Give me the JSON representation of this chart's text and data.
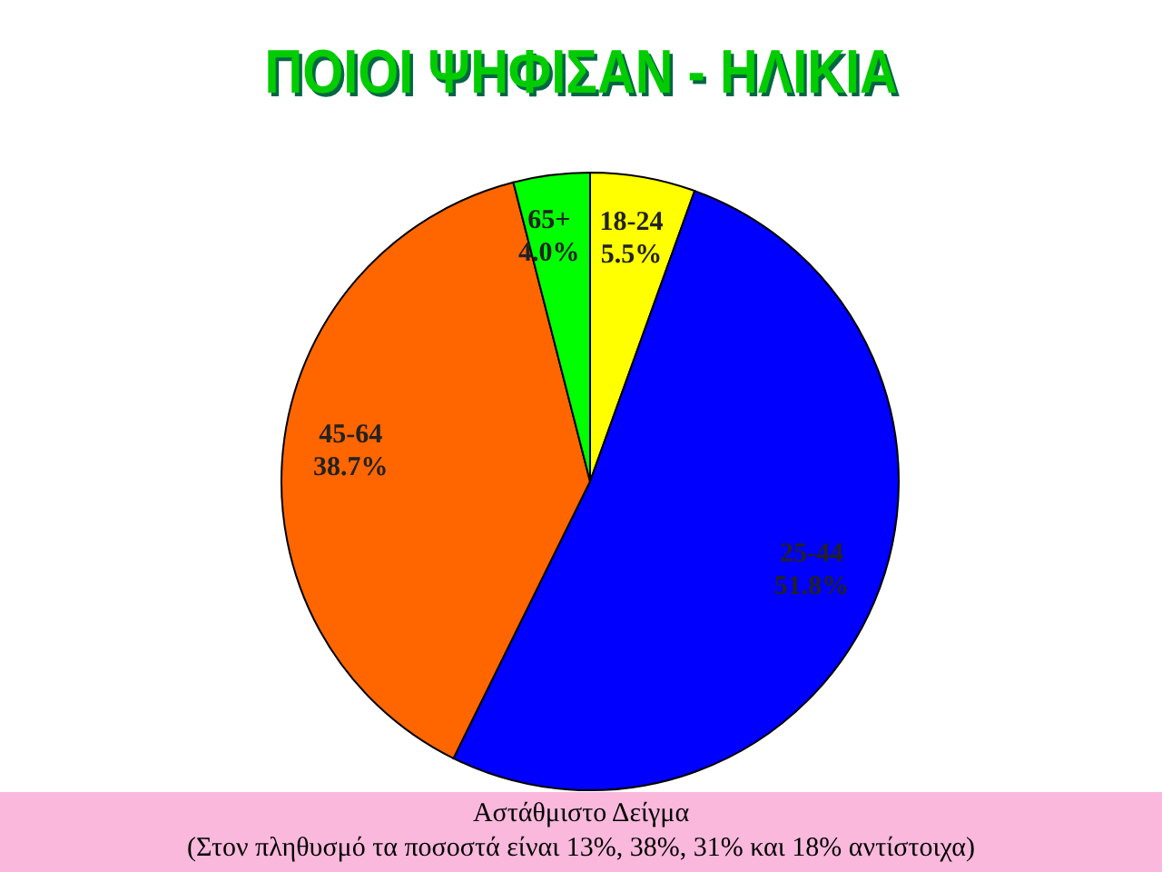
{
  "chart_data": {
    "type": "pie",
    "title": "ΠΟΙΟΙ ΨΗΦΙΣΑΝ - ΗΛΙΚΙΑ",
    "categories": [
      "18-24",
      "25-44",
      "45-64",
      "65+"
    ],
    "values": [
      5.5,
      51.8,
      38.7,
      4.0
    ],
    "value_labels": [
      "5.5%",
      "51.8%",
      "38.7%",
      "4.0%"
    ],
    "colors": [
      "#ffff00",
      "#0000ff",
      "#ff6600",
      "#00ff00"
    ],
    "legend": false,
    "annotations": [
      "Αστάθμιστο Δείγμα",
      "(Στον πληθυσμό τα ποσοστά είναι 13%, 38%, 31% και 18% αντίστοιχα)"
    ]
  }
}
